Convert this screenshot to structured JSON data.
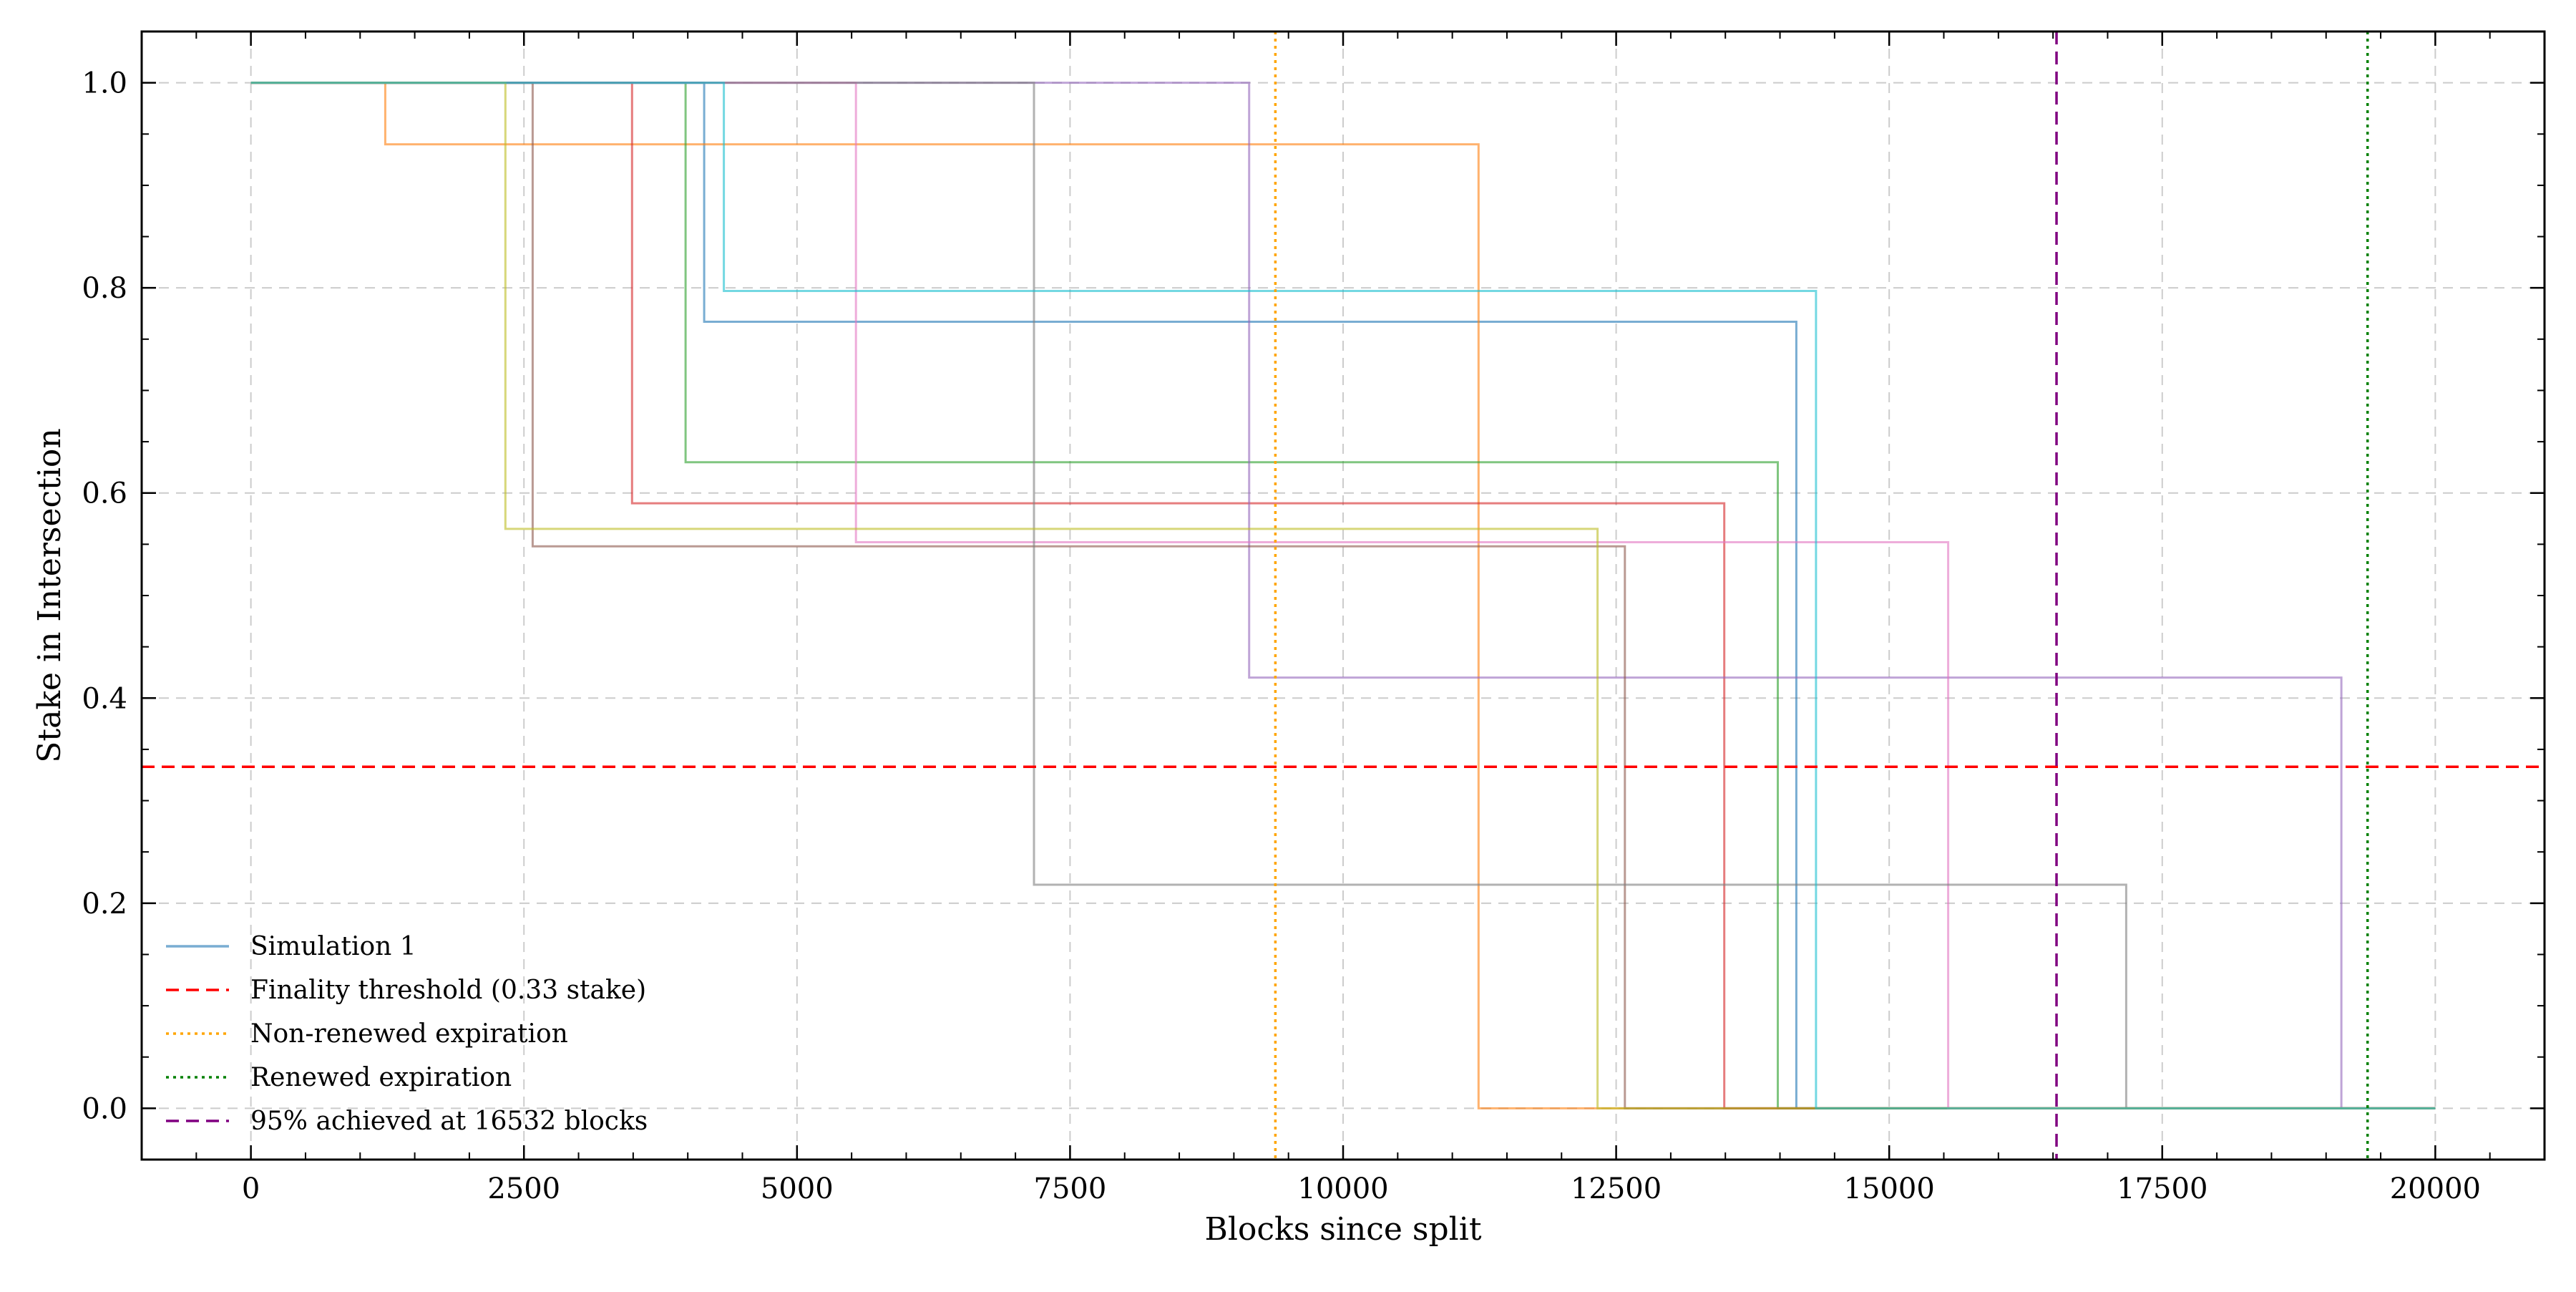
{
  "chart_data": {
    "type": "line",
    "xlabel": "Blocks since split",
    "ylabel": "Stake in Intersection",
    "xlim": [
      -1000,
      21000
    ],
    "ylim": [
      -0.05,
      1.05
    ],
    "xticks": [
      0,
      2500,
      5000,
      7500,
      10000,
      12500,
      15000,
      17500,
      20000
    ],
    "xtick_labels": [
      "0",
      "2500",
      "5000",
      "7500",
      "10000",
      "12500",
      "15000",
      "17500",
      "20000"
    ],
    "yticks": [
      0.0,
      0.2,
      0.4,
      0.6,
      0.8,
      1.0
    ],
    "ytick_labels": [
      "0.0",
      "0.2",
      "0.4",
      "0.6",
      "0.8",
      "1.0"
    ],
    "grid": true,
    "legend_position": "lower-left",
    "series": [
      {
        "name": "Simulation 1",
        "color": "#1f77b4",
        "points": [
          [
            0,
            1.0
          ],
          [
            4150,
            1.0
          ],
          [
            4150,
            0.767
          ],
          [
            14150,
            0.767
          ],
          [
            14150,
            0.0
          ],
          [
            20000,
            0.0
          ]
        ]
      },
      {
        "color": "#ff7f0e",
        "points": [
          [
            0,
            1.0
          ],
          [
            1230,
            1.0
          ],
          [
            1230,
            0.94
          ],
          [
            11240,
            0.94
          ],
          [
            11240,
            0.0
          ],
          [
            20000,
            0.0
          ]
        ]
      },
      {
        "color": "#2ca02c",
        "points": [
          [
            0,
            1.0
          ],
          [
            3980,
            1.0
          ],
          [
            3980,
            0.63
          ],
          [
            13980,
            0.63
          ],
          [
            13980,
            0.0
          ],
          [
            20000,
            0.0
          ]
        ]
      },
      {
        "color": "#d62728",
        "points": [
          [
            0,
            1.0
          ],
          [
            3490,
            1.0
          ],
          [
            3490,
            0.59
          ],
          [
            13490,
            0.59
          ],
          [
            13490,
            0.0
          ],
          [
            20000,
            0.0
          ]
        ]
      },
      {
        "color": "#9467bd",
        "points": [
          [
            0,
            1.0
          ],
          [
            9140,
            1.0
          ],
          [
            9140,
            0.42
          ],
          [
            19140,
            0.42
          ],
          [
            19140,
            0.0
          ],
          [
            20000,
            0.0
          ]
        ]
      },
      {
        "color": "#8c564b",
        "points": [
          [
            0,
            1.0
          ],
          [
            2580,
            1.0
          ],
          [
            2580,
            0.548
          ],
          [
            12580,
            0.548
          ],
          [
            12580,
            0.0
          ],
          [
            20000,
            0.0
          ]
        ]
      },
      {
        "color": "#e377c2",
        "points": [
          [
            0,
            1.0
          ],
          [
            5540,
            1.0
          ],
          [
            5540,
            0.552
          ],
          [
            15540,
            0.552
          ],
          [
            15540,
            0.0
          ],
          [
            20000,
            0.0
          ]
        ]
      },
      {
        "color": "#7f7f7f",
        "points": [
          [
            0,
            1.0
          ],
          [
            7170,
            1.0
          ],
          [
            7170,
            0.218
          ],
          [
            17170,
            0.218
          ],
          [
            17170,
            0.0
          ],
          [
            20000,
            0.0
          ]
        ]
      },
      {
        "color": "#bcbd22",
        "points": [
          [
            0,
            1.0
          ],
          [
            2330,
            1.0
          ],
          [
            2330,
            0.565
          ],
          [
            12330,
            0.565
          ],
          [
            12330,
            0.0
          ],
          [
            20000,
            0.0
          ]
        ]
      },
      {
        "color": "#17becf",
        "points": [
          [
            0,
            1.0
          ],
          [
            4330,
            1.0
          ],
          [
            4330,
            0.797
          ],
          [
            14330,
            0.797
          ],
          [
            14330,
            0.0
          ],
          [
            20000,
            0.0
          ]
        ]
      }
    ],
    "reference_lines": [
      {
        "orientation": "horizontal",
        "value": 0.333,
        "name": "Finality threshold (0.33 stake)",
        "color": "#ff0000",
        "style": "dashed"
      },
      {
        "orientation": "vertical",
        "value": 9380,
        "name": "Non-renewed expiration",
        "color": "#ffa500",
        "style": "dotted"
      },
      {
        "orientation": "vertical",
        "value": 19380,
        "name": "Renewed expiration",
        "color": "#008000",
        "style": "dotted"
      },
      {
        "orientation": "vertical",
        "value": 16532,
        "name": "95% achieved at 16532 blocks",
        "color": "#800080",
        "style": "dashed"
      }
    ]
  }
}
